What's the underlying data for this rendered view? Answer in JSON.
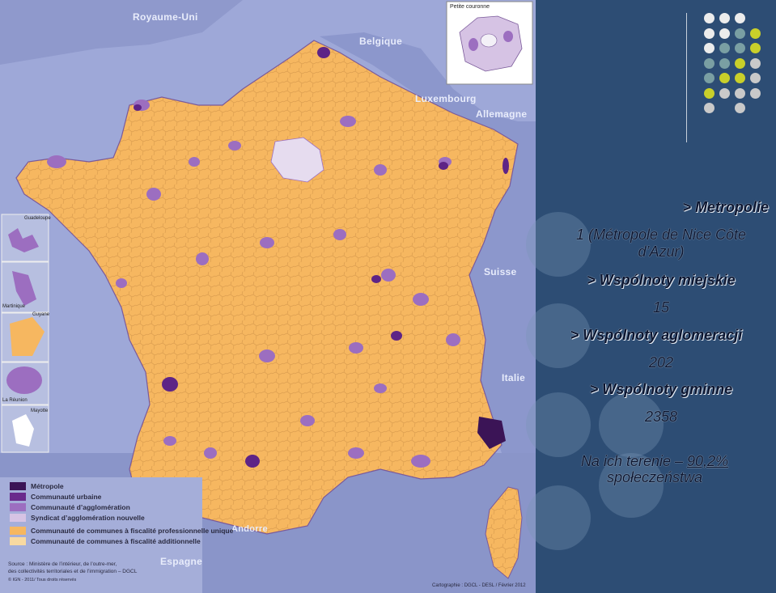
{
  "map": {
    "countries": [
      "Royaume-Uni",
      "Belgique",
      "Luxembourg",
      "Allemagne",
      "Suisse",
      "Italie",
      "Espagne",
      "Andorre"
    ],
    "inset_main": "Petite couronne",
    "overseas": [
      "Guadeloupe",
      "Martinique",
      "Guyane",
      "La Réunion",
      "Mayotte"
    ],
    "legend": [
      {
        "label": "Métropole",
        "color": "#3b1456"
      },
      {
        "label": "Communauté urbaine",
        "color": "#6a2a8c"
      },
      {
        "label": "Communauté d’agglomération",
        "color": "#9c6ec0"
      },
      {
        "label": "Syndicat d’agglomération nouvelle",
        "color": "#d6c3e4"
      },
      {
        "label": "Communauté de communes à fiscalité professionnelle unique",
        "color": "#f6b760"
      },
      {
        "label": "Communauté de communes à fiscalité additionnelle",
        "color": "#f8d9a1"
      }
    ],
    "source_line1": "Source : Ministère de l’intérieur, de l’outre-mer,",
    "source_line2": "des collectivités territoriales et de l’immigration – DGCL",
    "copyright": "© IGN - 2011/ Tous droits réservés",
    "cartography": "Cartographie : DGCL - DESL / Février 2012"
  },
  "panel": {
    "metropolie_heading": "> Metropolie",
    "metropolie_note_line1": "1 (Métropole de Nice Côte",
    "metropolie_note_line2": "d’Azur)",
    "miejskie_heading": "> Wspólnoty miejskie",
    "miejskie_count": "15",
    "aglomeracji_heading": "> Wspólnoty aglomeracji",
    "aglomeracji_count": "202",
    "gminne_heading": "> Wspólnoty gminne",
    "gminne_count": "2358",
    "coverage_line1_prefix": "Na ich terenie – ",
    "coverage_percent": "90,2%",
    "coverage_line2": "społeczeństwa"
  },
  "dots_colors": {
    "white": "#ececec",
    "teal": "#7a9fa3",
    "lime": "#c9cf2a",
    "grey": "#c9c9c9"
  }
}
